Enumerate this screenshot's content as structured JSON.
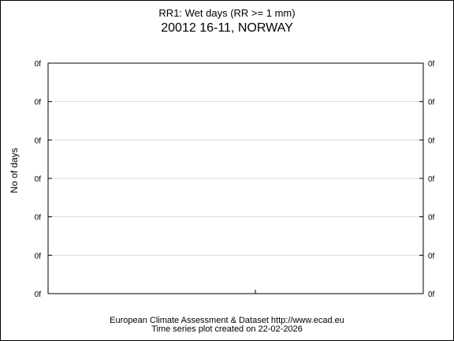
{
  "chart_data": {
    "type": "line",
    "title": "RR1: Wet days (RR >= 1 mm)",
    "subtitle": "20012 16-11, NORWAY",
    "xlabel": "",
    "ylabel": "No of days",
    "y_tick_labels": [
      "0f",
      "0f",
      "0f",
      "0f",
      "0f",
      "0f",
      "0f"
    ],
    "series": [],
    "grid": true
  },
  "footer": {
    "line1": "European Climate Assessment & Dataset  http://www.ecad.eu",
    "line2": "Time series plot created on 22-02-2026"
  }
}
